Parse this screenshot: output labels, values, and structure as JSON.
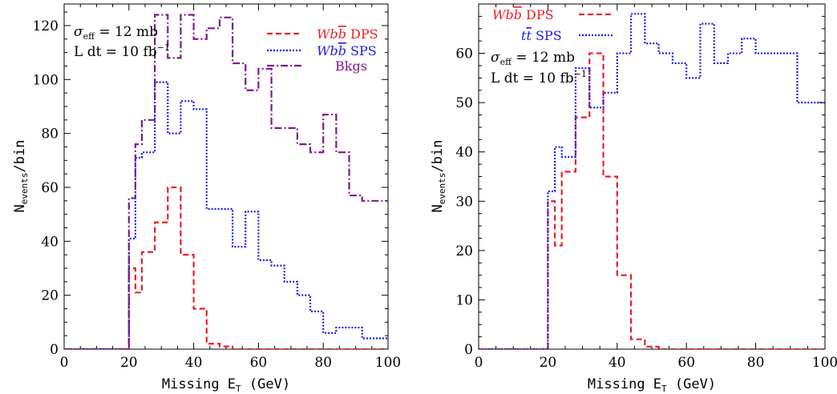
{
  "colors": {
    "dps": "#ee1c25",
    "sps": "#1a1aee",
    "bkg": "#7b1a8f"
  },
  "chart_data": [
    {
      "type": "line",
      "style": "step-histogram",
      "xlabel": "Missing E_T (GeV)",
      "ylabel": "N_events/bin",
      "xlim": [
        0,
        100
      ],
      "ylim": [
        0,
        128
      ],
      "xticks": [
        0,
        20,
        40,
        60,
        80,
        100
      ],
      "yticks": [
        0,
        20,
        40,
        60,
        80,
        100,
        120
      ],
      "annotation": [
        "σ_eff = 12 mb",
        "L dt = 10 fb^-1"
      ],
      "legend_position": "top-right",
      "bin_edges": [
        0,
        4,
        8,
        12,
        16,
        20,
        22,
        24,
        28,
        32,
        36,
        40,
        44,
        48,
        52,
        56,
        60,
        64,
        68,
        72,
        76,
        80,
        84,
        88,
        92,
        96,
        100
      ],
      "series": [
        {
          "name": "Wbb̄ DPS",
          "key": "dps",
          "dash": "dashed",
          "values": [
            0,
            0,
            0,
            0,
            0,
            30,
            21,
            36,
            47,
            60,
            35,
            15,
            2,
            1,
            0,
            0,
            0,
            0,
            0,
            0,
            0,
            0,
            0,
            0,
            0,
            0
          ]
        },
        {
          "name": "Wbb̄ SPS",
          "key": "sps",
          "dash": "dotted",
          "values": [
            0,
            0,
            0,
            0,
            0,
            41,
            71,
            73,
            99,
            80,
            92,
            89,
            52,
            52,
            38,
            51,
            33,
            31,
            25,
            20,
            14,
            6,
            8,
            8,
            4,
            4
          ]
        },
        {
          "name": "Bkgs",
          "key": "bkg",
          "dash": "dashdot",
          "values": [
            0,
            0,
            0,
            0,
            0,
            56,
            76,
            85,
            124,
            108,
            124,
            115,
            119,
            123,
            106,
            96,
            104,
            82,
            82,
            76,
            73,
            87,
            73,
            57,
            55,
            55
          ]
        }
      ]
    },
    {
      "type": "line",
      "style": "step-histogram",
      "xlabel": "Missing E_T (GeV)",
      "ylabel": "N_events/bin",
      "xlim": [
        0,
        100
      ],
      "ylim": [
        0,
        70
      ],
      "xticks": [
        0,
        20,
        40,
        60,
        80,
        100
      ],
      "yticks": [
        0,
        10,
        20,
        30,
        40,
        50,
        60
      ],
      "annotation": [
        "σ_eff = 12 mb",
        "L dt = 10 fb^-1"
      ],
      "legend_position": "top-left",
      "bin_edges": [
        0,
        4,
        8,
        12,
        16,
        20,
        22,
        24,
        28,
        32,
        36,
        40,
        44,
        48,
        52,
        56,
        60,
        64,
        68,
        72,
        76,
        80,
        84,
        88,
        92,
        96,
        100
      ],
      "series": [
        {
          "name": "Wbb̄ DPS",
          "key": "dps",
          "dash": "dashed",
          "values": [
            0,
            0,
            0,
            0,
            0,
            30,
            21,
            36,
            47,
            60,
            35,
            15,
            2,
            0.5,
            0,
            0,
            0,
            0,
            0,
            0,
            0,
            0,
            0,
            0,
            0,
            0
          ]
        },
        {
          "name": "tt̄ SPS",
          "key": "sps",
          "dash": "dotted",
          "values": [
            0,
            0,
            0,
            0,
            0,
            32,
            41,
            39,
            57,
            49,
            52,
            60,
            68,
            62,
            60,
            58,
            55,
            66,
            58,
            60,
            63,
            60,
            60,
            60,
            50,
            50
          ]
        }
      ]
    }
  ]
}
